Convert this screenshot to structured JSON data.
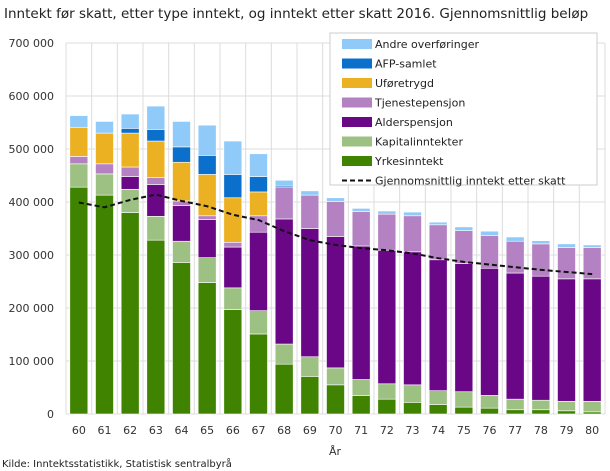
{
  "chart_data": {
    "type": "bar",
    "stacked": true,
    "title": "Inntekt før skatt, etter type inntekt, og inntekt etter skatt 2016. Gjennomsnittlig beløp",
    "xlabel": "År",
    "ylabel": "",
    "ylim": [
      0,
      700000
    ],
    "yticks": [
      0,
      100000,
      200000,
      300000,
      400000,
      500000,
      600000,
      700000
    ],
    "ytick_labels": [
      "0",
      "100 000",
      "200 000",
      "300 000",
      "400 000",
      "500 000",
      "600 000",
      "700 000"
    ],
    "grid": true,
    "legend_position": "top-right",
    "categories": [
      "60",
      "61",
      "62",
      "63",
      "64",
      "65",
      "66",
      "67",
      "68",
      "69",
      "70",
      "71",
      "72",
      "73",
      "74",
      "75",
      "76",
      "77",
      "78",
      "79",
      "80"
    ],
    "series": [
      {
        "name": "Yrkesinntekt",
        "color": "#3f8300",
        "values": [
          428000,
          413000,
          380000,
          328000,
          286000,
          248000,
          197000,
          151000,
          94000,
          71000,
          55000,
          35000,
          28000,
          22000,
          18000,
          13000,
          11000,
          8000,
          8000,
          6000,
          4000
        ]
      },
      {
        "name": "Kapitalinntekter",
        "color": "#9dc183",
        "values": [
          44000,
          40000,
          44000,
          45000,
          40000,
          47000,
          41000,
          44000,
          38000,
          37000,
          32000,
          30000,
          29000,
          33000,
          26000,
          29000,
          24000,
          20000,
          18000,
          18000,
          20000
        ]
      },
      {
        "name": "Alderspensjon",
        "color": "#6a0787",
        "values": [
          0,
          0,
          24000,
          60000,
          67000,
          72000,
          77000,
          148000,
          236000,
          242000,
          248000,
          252000,
          252000,
          251000,
          247000,
          242000,
          240000,
          238000,
          234000,
          231000,
          231000
        ]
      },
      {
        "name": "Tjenestepensjon",
        "color": "#b482c3",
        "values": [
          14000,
          19000,
          18000,
          13000,
          9000,
          7000,
          9000,
          31000,
          59000,
          63000,
          66000,
          65000,
          68000,
          68000,
          66000,
          62000,
          62000,
          60000,
          61000,
          59000,
          59000
        ]
      },
      {
        "name": "Uføretrygd",
        "color": "#ecb122",
        "values": [
          55000,
          58000,
          64000,
          69000,
          73000,
          78000,
          84000,
          45000,
          0,
          0,
          0,
          0,
          0,
          0,
          0,
          0,
          0,
          0,
          0,
          0,
          0
        ]
      },
      {
        "name": "AFP-samlet",
        "color": "#0b6fcc",
        "values": [
          0,
          0,
          9000,
          22000,
          29000,
          36000,
          44000,
          29000,
          3000,
          0,
          0,
          0,
          0,
          0,
          0,
          0,
          0,
          0,
          0,
          0,
          0
        ]
      },
      {
        "name": "Andre overføringer",
        "color": "#90caf9",
        "values": [
          22000,
          22000,
          27000,
          44000,
          48000,
          57000,
          63000,
          43000,
          11000,
          8000,
          7000,
          6000,
          6000,
          7000,
          5000,
          7000,
          8000,
          8000,
          6000,
          7000,
          5000
        ]
      }
    ],
    "line": {
      "name": "Gjennomsnittlig inntekt etter skatt",
      "color": "#111111",
      "style": "dashed",
      "values": [
        399000,
        390000,
        404000,
        414000,
        402000,
        392000,
        376000,
        366000,
        345000,
        328000,
        319000,
        313000,
        309000,
        303000,
        294000,
        287000,
        282000,
        277000,
        272000,
        268000,
        264000
      ]
    }
  },
  "source": "Kilde: Inntektsstatistikk, Statistisk sentralbyrå"
}
